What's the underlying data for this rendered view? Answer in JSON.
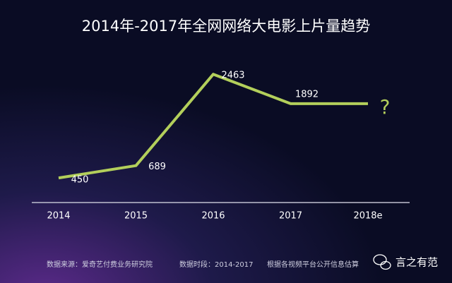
{
  "chart_data": {
    "type": "line",
    "title": "2014年-2017年全网网络大电影上片量趋势",
    "categories": [
      "2014",
      "2015",
      "2016",
      "2017",
      "2018e"
    ],
    "series": [
      {
        "color": "#b3cf5b",
        "values": [
          450,
          689,
          2463,
          1892,
          1892
        ],
        "value_labels": [
          "450",
          "689",
          "2463",
          "1892",
          null
        ]
      }
    ],
    "annotations": [
      {
        "text": "?",
        "category": "2018e"
      }
    ],
    "ylim": [
      0,
      3000
    ],
    "grid": false
  },
  "footer": {
    "source": "数据来源：爱奇艺付费业务研究院",
    "period": "数据时段：2014-2017",
    "note": "根据各视频平台公开信息估算",
    "watermark": "言之有范"
  }
}
